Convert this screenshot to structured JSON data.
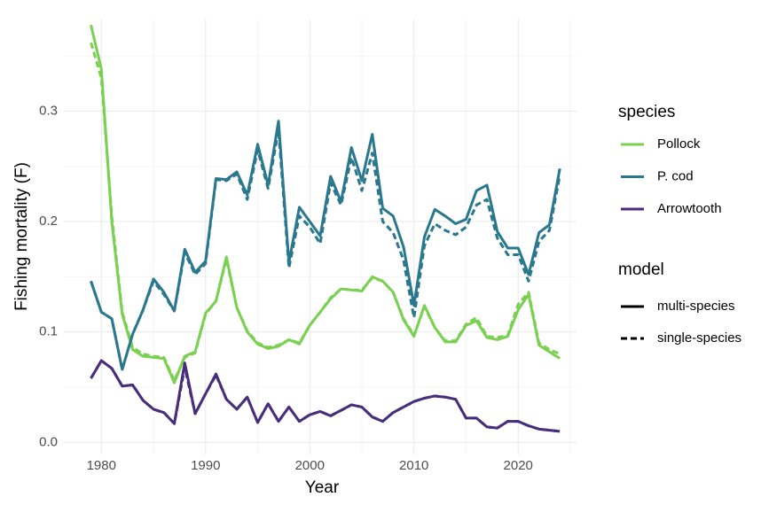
{
  "chart_data": {
    "type": "line",
    "x_label": "Year",
    "y_label": "Fishing mortality (F)",
    "x": [
      1979,
      1980,
      1981,
      1982,
      1983,
      1984,
      1985,
      1986,
      1987,
      1988,
      1989,
      1990,
      1991,
      1992,
      1993,
      1994,
      1995,
      1996,
      1997,
      1998,
      1999,
      2000,
      2001,
      2002,
      2003,
      2004,
      2005,
      2006,
      2007,
      2008,
      2009,
      2010,
      2011,
      2012,
      2013,
      2014,
      2015,
      2016,
      2017,
      2018,
      2019,
      2020,
      2021,
      2022,
      2023,
      2024
    ],
    "xlim": [
      1976.4,
      2025.6
    ],
    "xticks": [
      1980,
      1990,
      2000,
      2010,
      2020
    ],
    "x_minor_ticks": [
      1985,
      1995,
      2005,
      2015,
      2025
    ],
    "ylim": [
      -0.011,
      0.383
    ],
    "yticks": [
      {
        "value": 0,
        "label": "0.0"
      },
      0.1,
      0.2,
      0.3
    ],
    "y_minor_ticks": [
      0.05,
      0.15,
      0.25,
      0.35
    ],
    "grid": true,
    "legend_title": "species",
    "model_legend_title": "model",
    "models": [
      {
        "name": "multi-species",
        "dash": "solid"
      },
      {
        "name": "single-species",
        "dash": "dashed"
      }
    ],
    "series": [
      {
        "name": "Pollock",
        "color": "#7AD151",
        "values": [
          [
            0.378,
            0.338,
            0.2,
            0.116,
            0.084,
            0.078,
            0.077,
            0.076,
            0.054,
            0.078,
            0.082,
            0.117,
            0.128,
            0.168,
            0.122,
            0.1,
            0.089,
            0.085,
            0.087,
            0.093,
            0.089,
            0.106,
            0.118,
            0.13,
            0.139,
            0.138,
            0.137,
            0.15,
            0.146,
            0.136,
            0.111,
            0.096,
            0.124,
            0.104,
            0.091,
            0.091,
            0.106,
            0.11,
            0.095,
            0.093,
            0.096,
            0.12,
            0.134,
            0.088,
            0.082,
            0.076
          ],
          [
            0.362,
            0.33,
            0.205,
            0.118,
            0.086,
            0.08,
            0.078,
            0.077,
            0.056,
            0.077,
            0.081,
            0.116,
            0.128,
            0.166,
            0.122,
            0.101,
            0.09,
            0.086,
            0.088,
            0.093,
            0.09,
            0.106,
            0.118,
            0.131,
            0.139,
            0.138,
            0.138,
            0.149,
            0.146,
            0.136,
            0.112,
            0.097,
            0.123,
            0.104,
            0.092,
            0.092,
            0.107,
            0.113,
            0.096,
            0.095,
            0.097,
            0.125,
            0.136,
            0.09,
            0.084,
            0.08
          ]
        ]
      },
      {
        "name": "P. cod",
        "color": "#2A788E",
        "values": [
          [
            0.146,
            0.118,
            0.112,
            0.066,
            0.098,
            0.12,
            0.148,
            0.136,
            0.119,
            0.175,
            0.154,
            0.164,
            0.239,
            0.238,
            0.245,
            0.224,
            0.27,
            0.233,
            0.291,
            0.163,
            0.213,
            0.2,
            0.187,
            0.241,
            0.218,
            0.267,
            0.237,
            0.279,
            0.212,
            0.205,
            0.177,
            0.124,
            0.186,
            0.211,
            0.205,
            0.198,
            0.202,
            0.228,
            0.233,
            0.191,
            0.176,
            0.176,
            0.152,
            0.19,
            0.197,
            0.248
          ],
          [
            0.146,
            0.118,
            0.112,
            0.066,
            0.098,
            0.12,
            0.146,
            0.134,
            0.119,
            0.172,
            0.152,
            0.162,
            0.238,
            0.237,
            0.243,
            0.22,
            0.265,
            0.23,
            0.283,
            0.158,
            0.205,
            0.195,
            0.18,
            0.235,
            0.215,
            0.258,
            0.228,
            0.262,
            0.2,
            0.19,
            0.165,
            0.113,
            0.178,
            0.198,
            0.192,
            0.188,
            0.195,
            0.215,
            0.22,
            0.185,
            0.17,
            0.17,
            0.146,
            0.182,
            0.192,
            0.242
          ]
        ]
      },
      {
        "name": "Arrowtooth",
        "color": "#472D7B",
        "values": [
          [
            0.058,
            0.074,
            0.067,
            0.051,
            0.052,
            0.038,
            0.03,
            0.027,
            0.017,
            0.072,
            0.026,
            0.044,
            0.062,
            0.039,
            0.03,
            0.041,
            0.018,
            0.035,
            0.019,
            0.032,
            0.019,
            0.025,
            0.028,
            0.024,
            0.029,
            0.034,
            0.032,
            0.023,
            0.019,
            0.027,
            0.032,
            0.037,
            0.04,
            0.042,
            0.041,
            0.039,
            0.022,
            0.022,
            0.014,
            0.013,
            0.019,
            0.019,
            0.015,
            0.012,
            0.011,
            0.01
          ],
          [
            0.058,
            0.074,
            0.067,
            0.051,
            0.052,
            0.038,
            0.03,
            0.027,
            0.017,
            0.068,
            0.026,
            0.044,
            0.061,
            0.039,
            0.03,
            0.041,
            0.018,
            0.035,
            0.019,
            0.032,
            0.019,
            0.025,
            0.028,
            0.024,
            0.029,
            0.034,
            0.032,
            0.023,
            0.019,
            0.027,
            0.032,
            0.037,
            0.04,
            0.042,
            0.041,
            0.039,
            0.022,
            0.022,
            0.014,
            0.013,
            0.019,
            0.019,
            0.015,
            0.012,
            0.011,
            0.01
          ]
        ]
      }
    ]
  }
}
